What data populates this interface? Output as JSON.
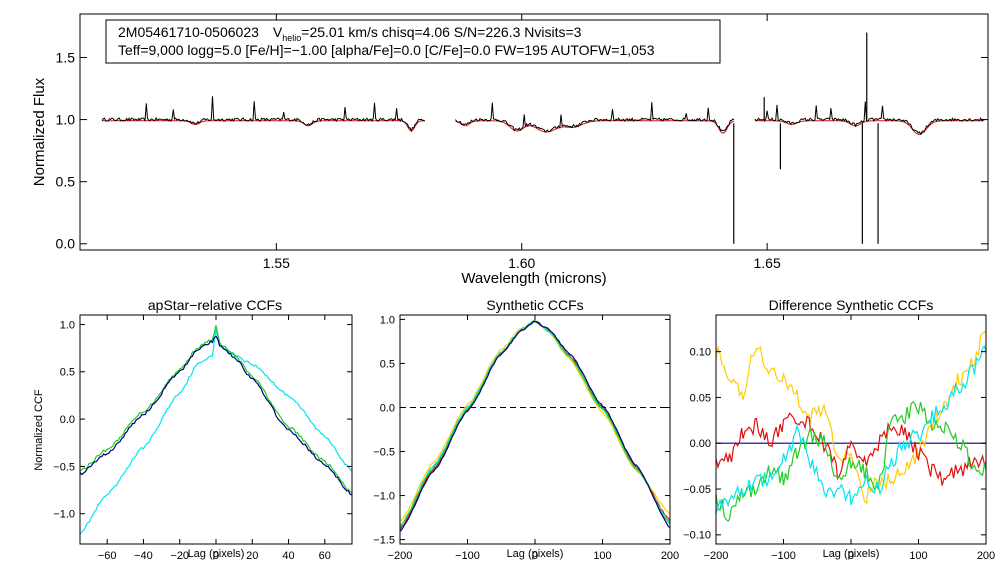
{
  "colors": {
    "black": "#000000",
    "red": "#e01010",
    "blue": "#000080",
    "green": "#22cc22",
    "cyan": "#00e5ee",
    "orange": "#ffcc00"
  },
  "info_box": {
    "star_id": "2M05461710-0506023",
    "v_symbol": "V",
    "v_sub": "helio",
    "line1_rest": "=25.01 km/s  chisq=4.06  S/N=226.3  Nvisits=3",
    "line2": "Teff=9,000 logg=5.0 [Fe/H]=−1.00 [alpha/Fe]=0.0 [C/Fe]=0.0 FW=195 AUTOFW=1,053"
  },
  "chart_data": [
    {
      "id": "spectrum",
      "type": "line",
      "title": "",
      "xlabel": "Wavelength (microns)",
      "ylabel": "Normalized Flux",
      "xlim": [
        1.51,
        1.695
      ],
      "ylim": [
        -0.05,
        1.85
      ],
      "xticks": [
        1.55,
        1.6,
        1.65
      ],
      "xtick_labels": [
        "1.55",
        "1.60",
        "1.65"
      ],
      "yticks": [
        0.0,
        0.5,
        1.0,
        1.5
      ],
      "ytick_labels": [
        "0.0",
        "0.5",
        "1.0",
        "1.5"
      ],
      "chips": [
        [
          1.5145,
          1.5805
        ],
        [
          1.5865,
          1.6435
        ],
        [
          1.6475,
          1.6945
        ]
      ],
      "absorption": [
        {
          "x": 1.5335,
          "d": 0.03,
          "w": 0.0012
        },
        {
          "x": 1.5565,
          "d": 0.04,
          "w": 0.0012
        },
        {
          "x": 1.5775,
          "d": 0.08,
          "w": 0.001
        },
        {
          "x": 1.5885,
          "d": 0.04,
          "w": 0.0012
        },
        {
          "x": 1.599,
          "d": 0.08,
          "w": 0.002
        },
        {
          "x": 1.605,
          "d": 0.09,
          "w": 0.003
        },
        {
          "x": 1.6105,
          "d": 0.05,
          "w": 0.0025
        },
        {
          "x": 1.641,
          "d": 0.1,
          "w": 0.0012
        },
        {
          "x": 1.655,
          "d": 0.03,
          "w": 0.0015
        },
        {
          "x": 1.668,
          "d": 0.04,
          "w": 0.0015
        },
        {
          "x": 1.681,
          "d": 0.11,
          "w": 0.002
        }
      ],
      "spikes": [
        {
          "x": 1.5235,
          "h": 0.12
        },
        {
          "x": 1.529,
          "h": 0.09
        },
        {
          "x": 1.537,
          "h": 0.18
        },
        {
          "x": 1.5455,
          "h": 0.14
        },
        {
          "x": 1.5515,
          "h": 0.06
        },
        {
          "x": 1.564,
          "h": 0.1
        },
        {
          "x": 1.57,
          "h": 0.13
        },
        {
          "x": 1.5745,
          "h": 0.1
        },
        {
          "x": 1.594,
          "h": 0.13
        },
        {
          "x": 1.6005,
          "h": 0.09
        },
        {
          "x": 1.608,
          "h": 0.1
        },
        {
          "x": 1.6185,
          "h": 0.08
        },
        {
          "x": 1.6265,
          "h": 0.13
        },
        {
          "x": 1.6335,
          "h": 0.06
        },
        {
          "x": 1.638,
          "h": 0.1
        },
        {
          "x": 1.65,
          "h": 0.08
        },
        {
          "x": 1.652,
          "h": 0.12
        },
        {
          "x": 1.66,
          "h": 0.12
        },
        {
          "x": 1.663,
          "h": 0.1
        },
        {
          "x": 1.67,
          "h": 0.14
        },
        {
          "x": 1.6735,
          "h": 0.1
        }
      ],
      "dips": [
        {
          "x": 1.6432,
          "y": 0.0
        },
        {
          "x": 1.6527,
          "y": 0.6
        },
        {
          "x": 1.6694,
          "y": 0.0
        },
        {
          "x": 1.6726,
          "y": 0.0
        }
      ],
      "peaks": [
        {
          "x": 1.6494,
          "y": 1.18
        },
        {
          "x": 1.6703,
          "y": 1.7
        }
      ]
    },
    {
      "id": "apstar_ccf",
      "type": "line",
      "title": "apStar−relative CCFs",
      "xlabel": "Lag (pixels)",
      "ylabel": "Normalized CCF",
      "xlim": [
        -75,
        75
      ],
      "ylim": [
        -1.32,
        1.1
      ],
      "xticks": [
        -60,
        -40,
        -20,
        0,
        20,
        40,
        60
      ],
      "xtick_labels": [
        "−60",
        "−40",
        "−20",
        "0",
        "20",
        "40",
        "60"
      ],
      "yticks": [
        -1.0,
        -0.5,
        0.0,
        0.5,
        1.0
      ],
      "ytick_labels": [
        "−1.0",
        "−0.5",
        "0.0",
        "0.5",
        "1.0"
      ],
      "series": [
        {
          "name": "cyan",
          "color": "cyan",
          "x": [
            -75,
            -60,
            -40,
            -20,
            -10,
            -2,
            0,
            2,
            10,
            20,
            40,
            60,
            75
          ],
          "y": [
            -1.2,
            -0.8,
            -0.3,
            0.28,
            0.58,
            0.68,
            0.94,
            0.78,
            0.68,
            0.58,
            0.25,
            -0.18,
            -0.55
          ]
        },
        {
          "name": "green",
          "color": "green",
          "x": [
            -75,
            -60,
            -40,
            -20,
            -10,
            -2,
            0,
            2,
            10,
            20,
            40,
            60,
            75
          ],
          "y": [
            -0.55,
            -0.32,
            0.08,
            0.52,
            0.76,
            0.84,
            0.98,
            0.8,
            0.68,
            0.45,
            -0.08,
            -0.45,
            -0.78
          ]
        },
        {
          "name": "blue",
          "color": "blue",
          "x": [
            -75,
            -60,
            -40,
            -20,
            -10,
            -2,
            0,
            2,
            10,
            20,
            40,
            60,
            75
          ],
          "y": [
            -0.58,
            -0.36,
            0.05,
            0.5,
            0.74,
            0.82,
            0.88,
            0.78,
            0.66,
            0.42,
            -0.12,
            -0.48,
            -0.8
          ]
        }
      ]
    },
    {
      "id": "synthetic_ccf",
      "type": "line",
      "title": "Synthetic CCFs",
      "xlabel": "Lag (pixels)",
      "ylabel": "",
      "xlim": [
        -200,
        200
      ],
      "ylim": [
        -1.55,
        1.05
      ],
      "xticks": [
        -200,
        -100,
        0,
        100,
        200
      ],
      "xtick_labels": [
        "−200",
        "−100",
        "0",
        "100",
        "200"
      ],
      "yticks": [
        -1.5,
        -1.0,
        -0.5,
        0.0,
        0.5,
        1.0
      ],
      "ytick_labels": [
        "−1.5",
        "−1.0",
        "−0.5",
        "0.0",
        "0.5",
        "1.0"
      ],
      "hline": 0.0,
      "series": [
        {
          "name": "red",
          "color": "red",
          "x": [
            -200,
            -150,
            -100,
            -50,
            -20,
            0,
            20,
            50,
            100,
            150,
            200
          ],
          "y": [
            -1.38,
            -0.7,
            -0.03,
            0.62,
            0.88,
            0.98,
            0.88,
            0.6,
            0.0,
            -0.68,
            -1.28
          ]
        },
        {
          "name": "orange",
          "color": "orange",
          "x": [
            -200,
            -150,
            -100,
            -50,
            -20,
            0,
            20,
            50,
            100,
            150,
            200
          ],
          "y": [
            -1.3,
            -0.62,
            0.03,
            0.66,
            0.9,
            0.98,
            0.86,
            0.56,
            -0.05,
            -0.72,
            -1.2
          ]
        },
        {
          "name": "cyan",
          "color": "cyan",
          "x": [
            -200,
            -150,
            -100,
            -50,
            -20,
            0,
            20,
            50,
            100,
            150,
            200
          ],
          "y": [
            -1.34,
            -0.66,
            0.0,
            0.63,
            0.89,
            0.98,
            0.87,
            0.58,
            -0.02,
            -0.7,
            -1.3
          ]
        },
        {
          "name": "green",
          "color": "green",
          "x": [
            -200,
            -150,
            -100,
            -50,
            -20,
            0,
            20,
            50,
            100,
            150,
            200
          ],
          "y": [
            -1.35,
            -0.68,
            -0.02,
            0.62,
            0.88,
            0.98,
            0.88,
            0.59,
            -0.01,
            -0.69,
            -1.32
          ]
        },
        {
          "name": "blue",
          "color": "blue",
          "x": [
            -200,
            -150,
            -100,
            -50,
            -20,
            0,
            20,
            50,
            100,
            150,
            200
          ],
          "y": [
            -1.4,
            -0.72,
            -0.04,
            0.61,
            0.87,
            0.98,
            0.89,
            0.62,
            0.02,
            -0.66,
            -1.36
          ]
        }
      ]
    },
    {
      "id": "difference_ccf",
      "type": "line",
      "title": "Difference Synthetic CCFs",
      "xlabel": "Lag (pixels)",
      "ylabel": "",
      "xlim": [
        -200,
        200
      ],
      "ylim": [
        -0.11,
        0.14
      ],
      "xticks": [
        -200,
        -100,
        0,
        100,
        200
      ],
      "xtick_labels": [
        "−200",
        "−100",
        "0",
        "100",
        "200"
      ],
      "yticks": [
        -0.1,
        -0.05,
        0.0,
        0.05,
        0.1
      ],
      "ytick_labels": [
        "−0.10",
        "−0.05",
        "0.00",
        "0.05",
        "0.10"
      ],
      "series": [
        {
          "name": "blue",
          "color": "blue",
          "x": [
            -200,
            200
          ],
          "y": [
            0.0,
            0.0
          ]
        },
        {
          "name": "orange",
          "color": "orange",
          "x": [
            -200,
            -180,
            -160,
            -140,
            -120,
            -100,
            -80,
            -60,
            -40,
            -20,
            0,
            20,
            40,
            60,
            80,
            100,
            120,
            140,
            160,
            180,
            200
          ],
          "y": [
            0.1,
            0.07,
            0.05,
            0.11,
            0.08,
            0.07,
            0.05,
            0.03,
            0.04,
            -0.01,
            -0.02,
            -0.06,
            -0.04,
            -0.04,
            -0.03,
            -0.01,
            0.02,
            0.04,
            0.07,
            0.09,
            0.12
          ]
        },
        {
          "name": "red",
          "color": "red",
          "x": [
            -200,
            -180,
            -160,
            -140,
            -120,
            -100,
            -80,
            -60,
            -40,
            -20,
            0,
            20,
            40,
            60,
            80,
            100,
            120,
            140,
            160,
            180,
            200
          ],
          "y": [
            -0.02,
            -0.02,
            0.01,
            0.02,
            0.0,
            0.02,
            0.03,
            0.02,
            0.0,
            -0.03,
            0.0,
            -0.02,
            0.0,
            0.02,
            0.01,
            -0.01,
            -0.03,
            -0.04,
            -0.03,
            -0.02,
            -0.02
          ]
        },
        {
          "name": "green",
          "color": "green",
          "x": [
            -200,
            -180,
            -160,
            -140,
            -120,
            -100,
            -80,
            -60,
            -40,
            -20,
            0,
            20,
            40,
            60,
            80,
            100,
            120,
            140,
            160,
            180,
            200
          ],
          "y": [
            -0.06,
            -0.08,
            -0.05,
            -0.05,
            -0.03,
            -0.04,
            -0.01,
            0.01,
            0.0,
            -0.04,
            -0.02,
            -0.03,
            -0.05,
            0.02,
            0.03,
            0.04,
            0.02,
            0.02,
            0.0,
            -0.02,
            -0.03
          ]
        },
        {
          "name": "cyan",
          "color": "cyan",
          "x": [
            -200,
            -180,
            -160,
            -140,
            -120,
            -100,
            -80,
            -60,
            -40,
            -20,
            0,
            20,
            40,
            60,
            80,
            100,
            120,
            140,
            160,
            180,
            200
          ],
          "y": [
            -0.07,
            -0.06,
            -0.05,
            -0.04,
            -0.04,
            -0.02,
            0.01,
            -0.02,
            -0.05,
            -0.05,
            -0.06,
            -0.04,
            -0.05,
            -0.02,
            0.0,
            0.01,
            0.03,
            0.04,
            0.06,
            0.08,
            0.1
          ]
        }
      ]
    }
  ]
}
